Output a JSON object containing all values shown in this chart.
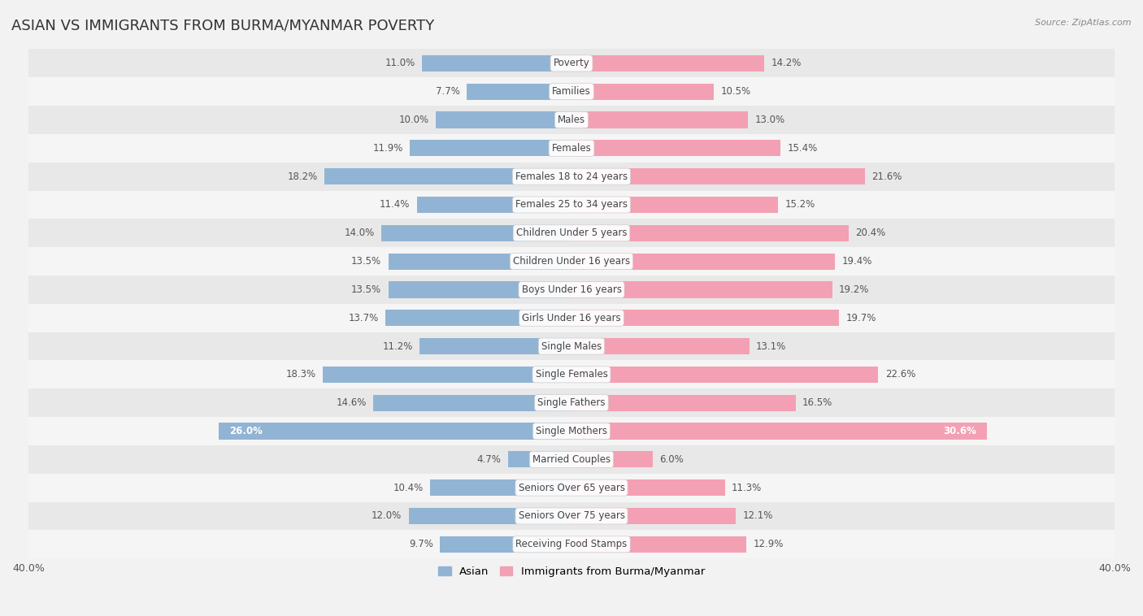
{
  "title": "ASIAN VS IMMIGRANTS FROM BURMA/MYANMAR POVERTY",
  "source": "Source: ZipAtlas.com",
  "categories": [
    "Poverty",
    "Families",
    "Males",
    "Females",
    "Females 18 to 24 years",
    "Females 25 to 34 years",
    "Children Under 5 years",
    "Children Under 16 years",
    "Boys Under 16 years",
    "Girls Under 16 years",
    "Single Males",
    "Single Females",
    "Single Fathers",
    "Single Mothers",
    "Married Couples",
    "Seniors Over 65 years",
    "Seniors Over 75 years",
    "Receiving Food Stamps"
  ],
  "asian_values": [
    11.0,
    7.7,
    10.0,
    11.9,
    18.2,
    11.4,
    14.0,
    13.5,
    13.5,
    13.7,
    11.2,
    18.3,
    14.6,
    26.0,
    4.7,
    10.4,
    12.0,
    9.7
  ],
  "burma_values": [
    14.2,
    10.5,
    13.0,
    15.4,
    21.6,
    15.2,
    20.4,
    19.4,
    19.2,
    19.7,
    13.1,
    22.6,
    16.5,
    30.6,
    6.0,
    11.3,
    12.1,
    12.9
  ],
  "asian_color": "#92b4d4",
  "burma_color": "#f4a0b4",
  "asian_label": "Asian",
  "burma_label": "Immigrants from Burma/Myanmar",
  "xlim": 40.0,
  "bg_color": "#f2f2f2",
  "title_fontsize": 13,
  "label_fontsize": 8.5,
  "value_fontsize": 8.5,
  "bar_height": 0.58,
  "row_colors": [
    "#e8e8e8",
    "#f5f5f5"
  ]
}
